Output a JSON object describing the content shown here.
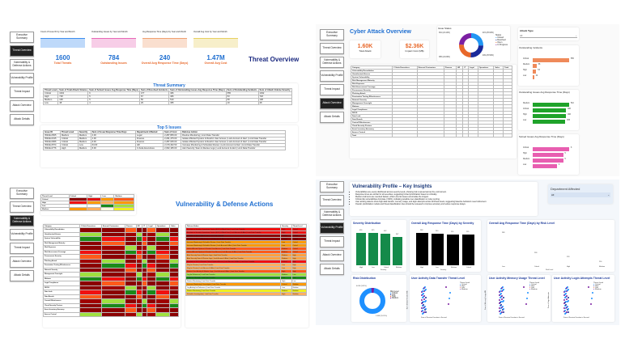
{
  "nav": [
    "Executive Summary",
    "Threat Overview",
    "Vulnerability & Defense Actions",
    "Vulnerability Profile",
    "Threat Impact",
    "Attack Overview",
    "Attack Details"
  ],
  "threat_overview": {
    "title": "Threat Overview",
    "sparklines": [
      "Count of Issue ID by Year and Month",
      "Outstanding Issues by Year and Month",
      "Avg Response Time (Days) by Year and Month",
      "Overall Avg Cost by Year and Month"
    ],
    "kpis": [
      {
        "value": "1600",
        "label": "Total Threats"
      },
      {
        "value": "784",
        "label": "Outstanding Issues"
      },
      {
        "value": "240",
        "label": "Overall Avg Response Time (Days)"
      },
      {
        "value": "1.47M",
        "label": "Overall Avg Cost"
      }
    ],
    "summary_title": "Threat Summary",
    "summary_headers": [
      "Threat Level",
      "Sum of Total Attack Volume",
      "Sum of Solved Issues Avg Response Time (Days)",
      "Sum of Resolved Incidents",
      "Sum of Outstanding Issues Avg Response Time (Days)",
      "Sum of Outstanding Incidents",
      "Sum of Attack Volume Severity"
    ],
    "summary_rows": [
      [
        "Critical",
        "1032",
        "6",
        "477",
        "466",
        "555",
        "1032"
      ],
      [
        "High",
        "718",
        "5",
        "67",
        "466",
        "53",
        "718"
      ],
      [
        "Medium",
        "108",
        "5",
        "50",
        "510",
        "58",
        "108"
      ],
      [
        "Low",
        "48",
        "4",
        "29",
        "455",
        "19",
        "48"
      ]
    ],
    "top5_title": "Top 5 Issues",
    "top5_headers": [
      "Issue ID",
      "Threat Level",
      "Severity",
      "Sum of Issue Response Time Days",
      "Department Affected",
      "Sum of Cost",
      "Defense Action"
    ],
    "top5_rows": [
      [
        "ISSUE-0505",
        "Medium",
        "Medium",
        "4.00",
        "Legal",
        "2,287,805.00",
        "Routine Monitoring | Limit Data Transfer"
      ],
      [
        "ISSUE-0315",
        "Critical",
        "Medium",
        "1.00",
        "Finance",
        "2,291,475.00",
        "Isolate Affected System & Restrict User Access | Lock Account & Alert | Limit Data Transfer"
      ],
      [
        "ISSUE-0966",
        "Critical",
        "Medium",
        "9.00",
        "Finance",
        "2,287,025.00",
        "Isolate Affected System & Restrict User Access | Lock Account & Alert | Limit Data Transfer"
      ],
      [
        "ISSUE-0574",
        "Critical",
        "Low",
        "64.00",
        "HR",
        "2,179,402.50",
        "Increase Monitoring & Schedule Review | Lock Account & Alert | Limit Data Transfer"
      ],
      [
        "ISSUE-0776",
        "High",
        "Medium",
        "6.00",
        "C-Suite Executives",
        "2,062,165.00",
        "Alert Security Team & Review Logs | Lock Account & Alert | Limit Data Transfer"
      ]
    ]
  },
  "attack_overview": {
    "title": "Cyber Attack Overview",
    "kpis": [
      {
        "value": "1.60K",
        "label": "Total Attack"
      },
      {
        "value": "$2.36K",
        "label": "Impact Cost (M$)"
      }
    ],
    "issue_status": {
      "title": "Issue Status",
      "legend_title": "Status",
      "labels": [
        "Closed",
        "Resolved",
        "Open",
        "In Progress"
      ],
      "callouts": [
        "391 (24.44%)",
        "415 (25.93%)",
        "409 (25.56%)",
        "385 (24.06%)"
      ]
    },
    "filter": {
      "label": "Attack Type",
      "value": "All"
    },
    "table_headers": [
      "Category",
      "C-Suite Executives",
      "External Contractors",
      "Finance",
      "HR",
      "IT",
      "Legal",
      "Operations",
      "Sales",
      "Total"
    ],
    "categories": [
      "Vulnerability Remediation",
      "Unauthorized Access",
      "System Vulnerability",
      "Risk Management Maturity",
      "Risk Exposure",
      "Risk Assessment Coverage",
      "Procurement Security",
      "Phishing Attack",
      "Penetration Testing Effectiveness",
      "Network Security",
      "Management Oversight",
      "Malware",
      "Legal Compliance",
      "DDOS",
      "Data Leak",
      "Data Breach",
      "Control Effectiveness",
      "Cloud Security Posture",
      "Asset Inventory Accuracy",
      "Access Control",
      "Total"
    ],
    "charts": [
      {
        "title": "Outstanding Incidents",
        "axis": "Threat Level",
        "color": "#ef8a5a",
        "cats": [
          "Critical",
          "Medium",
          "High",
          "Low"
        ],
        "values": [
          555,
          58,
          53,
          19
        ]
      },
      {
        "title": "Outstanding Issues Avg Response Time (Days)",
        "axis": "Threat Level",
        "color": "#1fa32a",
        "cats": [
          "Medium",
          "Critical",
          "High",
          "Low"
        ],
        "values": [
          510,
          466,
          466,
          455
        ]
      },
      {
        "title": "Solved Issues Avg Response Time (Days)",
        "axis": "Threat Level",
        "color": "#e85eb0",
        "cats": [
          "Critical",
          "High",
          "Medium",
          "Low"
        ],
        "values": [
          6,
          5,
          5,
          4
        ]
      }
    ]
  },
  "vuln_defense": {
    "title": "Vulnerability & Defense Actions",
    "matrix_headers": [
      "Threat Level",
      "Critical",
      "High",
      "Low",
      "Medium"
    ],
    "matrix_rows": [
      "Critical",
      "High",
      "Low",
      "Medium"
    ],
    "heat_headers": [
      "Category",
      "C-Suite Executives",
      "External Contractors",
      "Finance",
      "HR",
      "IT",
      "Legal",
      "Operations",
      "Sales"
    ],
    "action_headers": [
      "Defense Action",
      "Severity",
      "Threat Level"
    ],
    "actions": [
      [
        "Escalate to Security Operations Center (SOC) & Block User | Limit Data Transfer",
        "High",
        "Critical",
        "#f01010"
      ],
      [
        "Escalate to Security Operations Center (SOC) & Block User | Lock Account & Alert | Limit Data Transfer",
        "High",
        "Critical",
        "#f01010"
      ],
      [
        "Escalate to SOC & Block User | Limit Data Transfer",
        "Critical",
        "Critical",
        "#8b0000"
      ],
      [
        "Escalate to SOC & Block User | Lock Account & Alert | Limit Data Transfer",
        "Critical",
        "Critical",
        "#8b0000"
      ],
      [
        "Increase Monitoring & Schedule Review | Limit Data Transfer",
        "Low",
        "Critical",
        "#ff9900"
      ],
      [
        "Increase Monitoring & Schedule Review | Lock Account & Alert | Limit Data Transfer",
        "Low",
        "Critical",
        "#ff9900"
      ],
      [
        "Isolate Affected System & Restrict User Access | Limit Data Transfer",
        "Medium",
        "Critical",
        "#ff5a1a"
      ],
      [
        "Isolate Affected System & Restrict User Access | Lock Account & Alert | Limit Data Transfer",
        "Medium",
        "Critical",
        "#ff5a1a"
      ],
      [
        "Alert Security Team & Review Logs | Limit Data Transfer",
        "Medium",
        "High",
        "#ffa040"
      ],
      [
        "Alert Security Team & Review Logs | Lock Account & Alert | Limit Data Transfer",
        "Medium",
        "High",
        "#ffa040"
      ],
      [
        "Escalate to SOC & Restrict Critical System Access | Lock Account & Alert | Limit Data Transfer",
        "Critical",
        "High",
        "#f01010"
      ],
      [
        "Flag for Review | Limit Data Transfer",
        "Low",
        "High",
        "#ffb060"
      ],
      [
        "Flag for Review | Lock Account & Alert | Limit Data Transfer",
        "Low",
        "High",
        "#ffb060"
      ],
      [
        "Restrict User Activity & Monitor Logs | Lock Account & Alert | Limit Data Transfer",
        "High",
        "High",
        "#ff5a1a"
      ],
      [
        "Log for Reference | Limit Data Transfer",
        "Medium",
        "Low",
        "#a0e040"
      ],
      [
        "No Action Needed | Limit Data Transfer",
        "Low",
        "Low",
        "#1a8a1a"
      ],
      [
        "Routine Monitoring | Limit Data Transfer",
        "High",
        "Low",
        "#ffffff"
      ],
      [
        "Increase Monitoring & Investigate | Limit Data Transfer",
        "Critical",
        "Medium",
        "#ff9900"
      ],
      [
        "Log Activity for Reference | Limit Data Transfer",
        "Low",
        "Medium",
        "#ffffff"
      ],
      [
        "Routine Monitoring | Limit Data Transfer",
        "Medium",
        "Medium",
        "#f0f020"
      ],
      [
        "Schedule Investigation | Limit Data Transfer",
        "High",
        "Medium",
        "#ffb060"
      ]
    ]
  },
  "vuln_profile": {
    "title": "Vulnerability Profile – Key Insights",
    "insights": [
      "Vulnerabilities are evenly distributed across severity levels, showing risk is spread across the environment.",
      "Response times are similar for all severities, suggesting limited prioritization based on criticality.",
      "Medium-risk items are resolved fastest, while Low-risk issues accumulate the longest.",
      "Critical-risk vulnerabilities dominate (>90%), indicating possible over-classification or noisy scoring.",
      "User activity patterns show high data transfer, memory usage, and login attempts across all threat levels, suggesting baseline behaviors need refinement.",
      "Overall, prioritization models and threat classification rules should be reviewed to improve accuracy and reduce response delays."
    ],
    "filter": {
      "label": "Department Affected",
      "value": "All"
    },
    "severity": {
      "title": "Severity Distribution",
      "xlabel": "Severity",
      "cats": [
        "High",
        "Low",
        "Critical",
        "Medium"
      ],
      "values": [
        416,
        415,
        402,
        367
      ]
    },
    "resp_sev": {
      "title": "Overall Avg Response Time (Days) by Severity",
      "xlabel": "Severity",
      "cats": [
        "High",
        "Low",
        "Medium",
        "Critical"
      ],
      "values": [
        248,
        240,
        235,
        235
      ]
    },
    "resp_risk": {
      "title": "Overall Avg Response Time (Days) by Risk Level",
      "xlabel": "Risk Level",
      "cats": [
        "Low",
        "Critical",
        "High",
        "Medium"
      ],
      "values": [
        288,
        238,
        228,
        216
      ]
    },
    "risk": {
      "title": "Risk Distribution",
      "legend_title": "Risk Level",
      "labels": [
        "Critical",
        "Low",
        "High",
        "Medium"
      ],
      "callouts": [
        "0.05K (3.31%)",
        "1.46K (91.31%)"
      ]
    },
    "scatters": [
      {
        "title": "User Activity Data Transfer Threat Level",
        "xlabel": "Sum of Session Duration in Second",
        "ylabel": "Sum of Data Transfer MB"
      },
      {
        "title": "User Activity Memory Usage Threat Level",
        "xlabel": "Sum of Session Duration in Second",
        "ylabel": "Sum of Memory Usage MB"
      },
      {
        "title": "User Activity Login Attempts Threat Level",
        "xlabel": "Sum of Session Duration in Second",
        "ylabel": "Sum of Login Attempts"
      }
    ],
    "scatter_legend_title": "Threat Level",
    "scatter_legend": [
      "Critical",
      "High",
      "Low",
      "Medium"
    ]
  }
}
